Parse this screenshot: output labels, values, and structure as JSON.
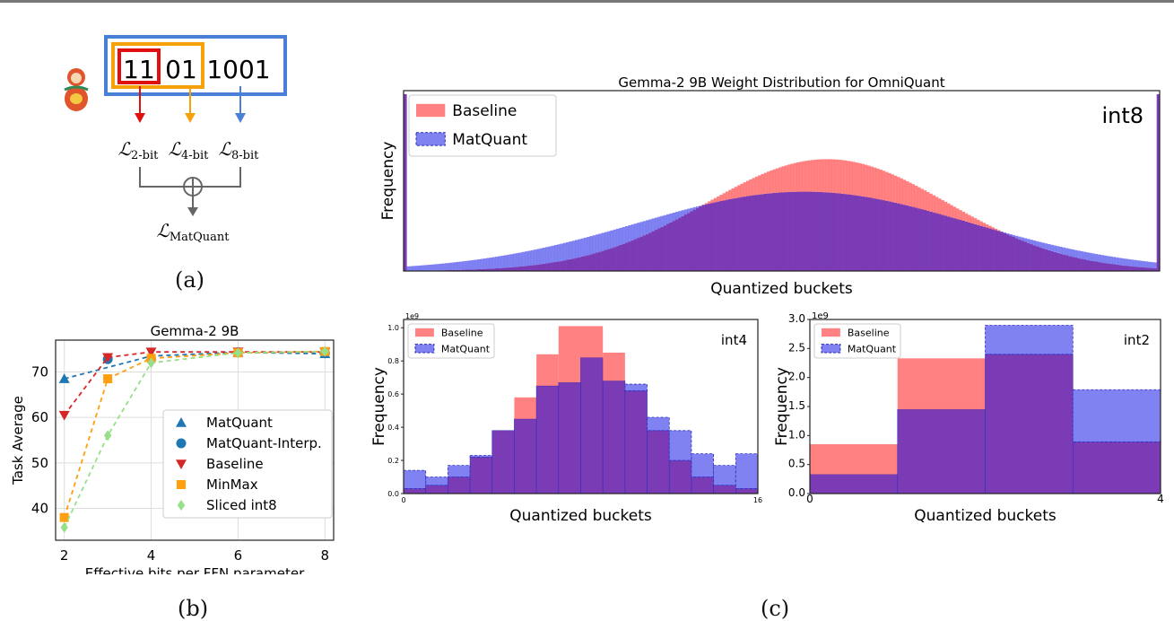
{
  "captions": {
    "a": "(a)",
    "b": "(b)",
    "c": "(c)"
  },
  "diagram": {
    "bits": {
      "b2": "11",
      "b4": "01",
      "b8": "1001"
    },
    "loss_symbol": "ℒ",
    "losses": [
      {
        "sub": "2-bit",
        "color": "#e01010"
      },
      {
        "sub": "4-bit",
        "color": "#f5a20a"
      },
      {
        "sub": "8-bit",
        "color": "#4a7fd8"
      }
    ],
    "total": {
      "sub": "MatQuant"
    },
    "doll_icon": "matryoshka-doll-icon"
  },
  "colors": {
    "baseline": "#ff6b6b",
    "matquant": "#6a6cf0",
    "overlap": "#7a3bb5",
    "line_matquant": "#1f77b4",
    "line_baseline": "#d62728",
    "line_minmax": "#ff9f0e",
    "line_sliced": "#98df8a"
  },
  "chart_data": [
    {
      "id": "b",
      "type": "line",
      "title": "Gemma-2 9B",
      "xlabel": "Effective bits per FFN parameter",
      "ylabel": "Task Average",
      "xlim": [
        1.8,
        8.2
      ],
      "ylim": [
        33,
        77
      ],
      "xticks": [
        2,
        4,
        6,
        8
      ],
      "yticks": [
        40,
        50,
        60,
        70
      ],
      "grid": true,
      "legend": "bottom-right",
      "series": [
        {
          "name": "MatQuant",
          "marker": "triangle-up",
          "color": "#1f77b4",
          "x": [
            2,
            4,
            6,
            8
          ],
          "y": [
            68.5,
            73.5,
            74.3,
            74.0
          ]
        },
        {
          "name": "MatQuant-Interp.",
          "marker": "circle",
          "color": "#1f77b4",
          "x": [
            3,
            6,
            8
          ],
          "y": [
            72.8,
            74.3,
            74.1
          ]
        },
        {
          "name": "Baseline",
          "marker": "triangle-down",
          "color": "#d62728",
          "x": [
            2,
            3,
            4,
            6,
            8
          ],
          "y": [
            60.5,
            73.2,
            74.4,
            74.4,
            74.4
          ]
        },
        {
          "name": "MinMax",
          "marker": "square",
          "color": "#ff9f0e",
          "x": [
            2,
            3,
            4,
            6,
            8
          ],
          "y": [
            38.0,
            68.5,
            73.0,
            74.2,
            74.5
          ]
        },
        {
          "name": "Sliced int8",
          "marker": "diamond",
          "color": "#98df8a",
          "x": [
            2,
            3,
            4,
            6,
            8
          ],
          "y": [
            35.8,
            56.0,
            72.0,
            74.2,
            74.5
          ]
        }
      ]
    },
    {
      "id": "int8",
      "type": "bar",
      "title": "Gemma-2 9B Weight Distribution for OmniQuant",
      "annotation": "int8",
      "xlabel": "Quantized buckets",
      "ylabel": "Frequency",
      "legend": "top-left",
      "baseline": {
        "name": "Baseline",
        "mu": 0.56,
        "sigma": 0.16,
        "peak": 0.62
      },
      "matquant": {
        "name": "MatQuant",
        "mu": 0.53,
        "sigma": 0.22,
        "peak": 0.44
      },
      "bins": 256
    },
    {
      "id": "int4",
      "type": "bar",
      "annotation": "int4",
      "xlabel": "Quantized buckets",
      "ylabel": "Frequency",
      "scale_label": "1e9",
      "xlim": [
        0,
        16
      ],
      "xticks": [
        "0",
        "16"
      ],
      "ylim": [
        0,
        1.05
      ],
      "yticks": [
        "0.0",
        "0.2",
        "0.4",
        "0.6",
        "0.8",
        "1.0"
      ],
      "legend": "top-left",
      "series": [
        {
          "name": "Baseline",
          "values": [
            0.03,
            0.05,
            0.1,
            0.22,
            0.38,
            0.58,
            0.84,
            1.01,
            1.01,
            0.85,
            0.62,
            0.38,
            0.2,
            0.1,
            0.05,
            0.03
          ]
        },
        {
          "name": "MatQuant",
          "values": [
            0.14,
            0.1,
            0.17,
            0.23,
            0.38,
            0.45,
            0.65,
            0.67,
            0.82,
            0.68,
            0.66,
            0.46,
            0.38,
            0.24,
            0.17,
            0.24
          ]
        }
      ]
    },
    {
      "id": "int2",
      "type": "bar",
      "annotation": "int2",
      "xlabel": "Quantized buckets",
      "ylabel": "Frequency",
      "scale_label": "1e9",
      "xlim": [
        0,
        4
      ],
      "xticks": [
        "0",
        "4"
      ],
      "ylim": [
        0,
        3.0
      ],
      "yticks": [
        "0.0",
        "0.5",
        "1.0",
        "1.5",
        "2.0",
        "2.5",
        "3.0"
      ],
      "legend": "top-left",
      "series": [
        {
          "name": "Baseline",
          "values": [
            0.85,
            2.33,
            2.4,
            0.89
          ]
        },
        {
          "name": "MatQuant",
          "values": [
            0.33,
            1.45,
            2.9,
            1.79
          ]
        }
      ]
    }
  ]
}
